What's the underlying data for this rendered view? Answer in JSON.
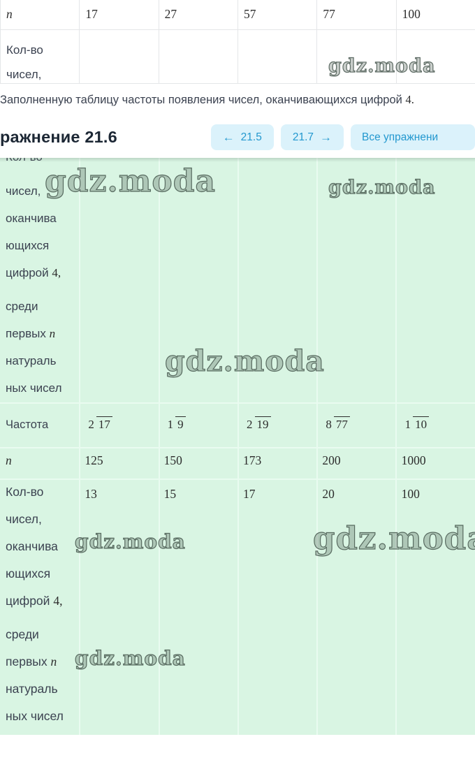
{
  "watermark": {
    "text": "gdz.moda"
  },
  "top_table": {
    "rows": [
      {
        "label": "n",
        "values": [
          "17",
          "27",
          "57",
          "77",
          "100"
        ]
      },
      {
        "label_lines": [
          "Кол-во",
          "чисел,"
        ],
        "values": [
          "",
          "",
          "",
          "",
          ""
        ]
      }
    ]
  },
  "caption": {
    "text": "Заполненную таблицу частоты появления чисел, оканчивающихся цифрой 4."
  },
  "exercise_header": {
    "title": "ражнение 21.6",
    "nav_prev": {
      "arrow": "←",
      "label": "21.5"
    },
    "nav_next": {
      "label": "21.7",
      "arrow": "→"
    },
    "nav_all": {
      "label": "Все упражнени"
    }
  },
  "answer_table": {
    "row_tall_top": {
      "label_groups": [
        [
          "Кол-во",
          "чисел,",
          "оканчива",
          "ющихся",
          "цифрой 4,"
        ],
        [
          "среди",
          "первых n",
          "натураль",
          "ных чисел"
        ]
      ],
      "values": [
        "",
        "",
        "",
        "",
        ""
      ]
    },
    "row_frequency": {
      "label": "Частота",
      "fractions": [
        {
          "num": "2",
          "den": "17"
        },
        {
          "num": "1",
          "den": "9"
        },
        {
          "num": "2",
          "den": "19"
        },
        {
          "num": "8",
          "den": "77"
        },
        {
          "num": "1",
          "den": "10"
        }
      ]
    },
    "row_n": {
      "label": "n",
      "values": [
        "125",
        "150",
        "173",
        "200",
        "1000"
      ]
    },
    "row_tall_bottom": {
      "label_groups": [
        [
          "Кол-во",
          "чисел,",
          "оканчива",
          "ющихся",
          "цифрой 4,"
        ],
        [
          "среди",
          "первых n",
          "натураль",
          "ных чисел"
        ]
      ],
      "values": [
        "13",
        "15",
        "17",
        "20",
        "100"
      ]
    }
  },
  "colors": {
    "accent_blue": "#2398cf",
    "button_bg": "#dbf2fb",
    "table_bg": "#d9f5e3",
    "table_grid": "#e9fbf0",
    "top_table_border": "#e4e6e8",
    "text_dark": "#3b4250",
    "heading": "#1c2734"
  }
}
